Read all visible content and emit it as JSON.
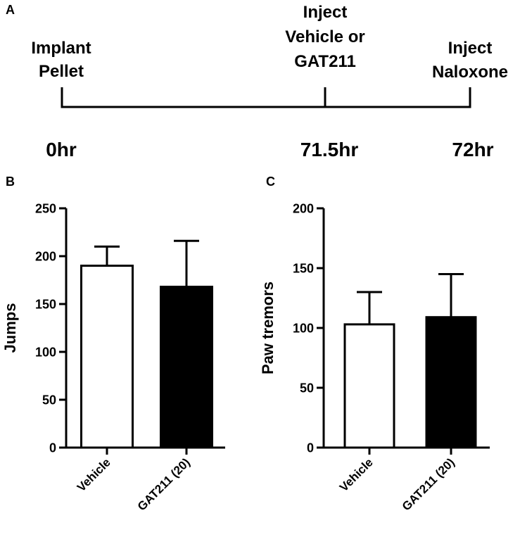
{
  "timeline": {
    "panel_label": "A",
    "events": [
      {
        "lines": [
          "Implant",
          "Pellet"
        ],
        "time": "0hr",
        "hours": 0
      },
      {
        "lines": [
          "Inject",
          "Vehicle or",
          "GAT211"
        ],
        "time": "71.5hr",
        "hours": 71.5
      },
      {
        "lines": [
          "Inject",
          "Naloxone"
        ],
        "time": "72hr",
        "hours": 72
      }
    ]
  },
  "chart_data": [
    {
      "type": "bar",
      "panel_label": "B",
      "title": "",
      "xlabel": "",
      "ylabel": "Jumps",
      "ylim": [
        0,
        250
      ],
      "yticks": [
        0,
        50,
        100,
        150,
        200,
        250
      ],
      "categories": [
        "Vehicle",
        "GAT211 (20)"
      ],
      "values": [
        190,
        168
      ],
      "errors": [
        20,
        48
      ],
      "colors": [
        "#ffffff",
        "#000000"
      ]
    },
    {
      "type": "bar",
      "panel_label": "C",
      "title": "",
      "xlabel": "",
      "ylabel": "Paw tremors",
      "ylim": [
        0,
        200
      ],
      "yticks": [
        0,
        50,
        100,
        150,
        200
      ],
      "categories": [
        "Vehicle",
        "GAT211 (20)"
      ],
      "values": [
        103,
        109
      ],
      "errors": [
        27,
        36
      ],
      "colors": [
        "#ffffff",
        "#000000"
      ]
    }
  ]
}
